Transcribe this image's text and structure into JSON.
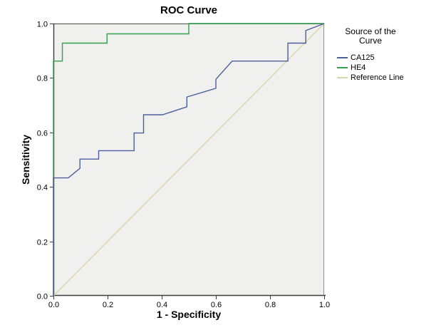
{
  "chart_data": {
    "type": "line",
    "subtype": "roc-step-curves",
    "title": "ROC Curve",
    "xlabel": "1 - Specificity",
    "ylabel": "Sensitivity",
    "xlim": [
      0.0,
      1.0
    ],
    "ylim": [
      0.0,
      1.0
    ],
    "x_ticks": [
      0.0,
      0.2,
      0.4,
      0.6,
      0.8,
      1.0
    ],
    "y_ticks": [
      0.0,
      0.2,
      0.4,
      0.6,
      0.8,
      1.0
    ],
    "x_tick_labels": [
      "0.0",
      "0.2",
      "0.4",
      "0.6",
      "0.8",
      "1.0"
    ],
    "y_tick_labels": [
      "0.0",
      "0.2",
      "0.4",
      "0.6",
      "0.8",
      "1.0"
    ],
    "grid": false,
    "plot_background": "#f0f0ee",
    "border_color": "#8f8f8f",
    "axis_color": "#3b3b3b",
    "top_border_color": "#4a4a4a",
    "legend": {
      "position": "right",
      "title_line1": "Source of the",
      "title_line2": "Curve"
    },
    "series": [
      {
        "name": "CA125",
        "color": "#4e5f9d",
        "points": [
          [
            0,
            0
          ],
          [
            0,
            0.433
          ],
          [
            0.055,
            0.433
          ],
          [
            0.098,
            0.468
          ],
          [
            0.098,
            0.502
          ],
          [
            0.167,
            0.502
          ],
          [
            0.167,
            0.533
          ],
          [
            0.298,
            0.533
          ],
          [
            0.298,
            0.598
          ],
          [
            0.333,
            0.598
          ],
          [
            0.333,
            0.665
          ],
          [
            0.403,
            0.665
          ],
          [
            0.493,
            0.694
          ],
          [
            0.493,
            0.73
          ],
          [
            0.6,
            0.762
          ],
          [
            0.6,
            0.795
          ],
          [
            0.66,
            0.862
          ],
          [
            0.866,
            0.862
          ],
          [
            0.866,
            0.928
          ],
          [
            0.932,
            0.928
          ],
          [
            0.932,
            0.974
          ],
          [
            1,
            1
          ]
        ]
      },
      {
        "name": "HE4",
        "color": "#32a14e",
        "points": [
          [
            0,
            0
          ],
          [
            0,
            0.862
          ],
          [
            0.033,
            0.862
          ],
          [
            0.033,
            0.928
          ],
          [
            0.198,
            0.928
          ],
          [
            0.198,
            0.962
          ],
          [
            0.5,
            0.962
          ],
          [
            0.5,
            1
          ],
          [
            1,
            1
          ]
        ]
      },
      {
        "name": "Reference Line",
        "color": "#d8d5ac",
        "points": [
          [
            0,
            0
          ],
          [
            1,
            1
          ]
        ]
      }
    ]
  }
}
